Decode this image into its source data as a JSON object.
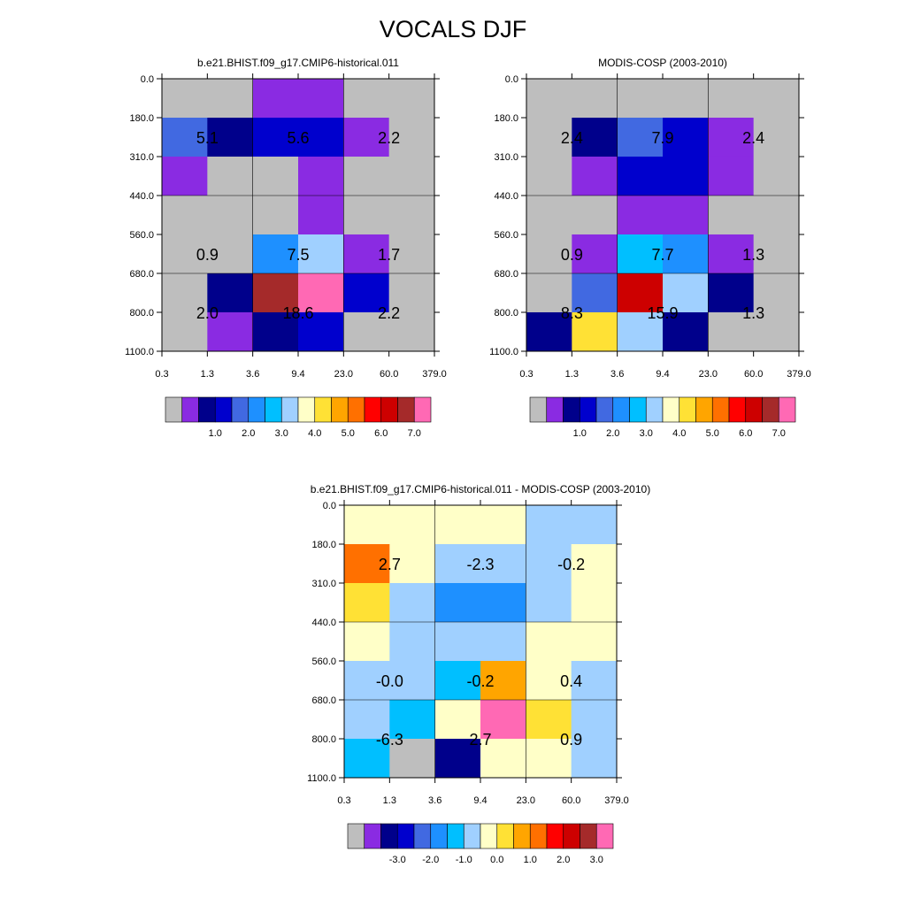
{
  "title": "VOCALS DJF",
  "y_tick_labels": [
    "0.0",
    "180.0",
    "310.0",
    "440.0",
    "560.0",
    "680.0",
    "800.0",
    "1100.0"
  ],
  "x_tick_labels": [
    "0.3",
    "1.3",
    "3.6",
    "9.4",
    "23.0",
    "60.0",
    "379.0"
  ],
  "chart_data": [
    {
      "type": "heatmap",
      "title": "b.e21.BHIST.f09_g17.CMIP6-historical.011",
      "cell_colors": [
        [
          "#bebebe",
          "#bebebe",
          "#8a2be2",
          "#8a2be2",
          "#bebebe",
          "#bebebe"
        ],
        [
          "#4169e1",
          "#00008b",
          "#0000cd",
          "#0000cd",
          "#8a2be2",
          "#bebebe"
        ],
        [
          "#8a2be2",
          "#bebebe",
          "#bebebe",
          "#8a2be2",
          "#bebebe",
          "#bebebe"
        ],
        [
          "#bebebe",
          "#bebebe",
          "#bebebe",
          "#8a2be2",
          "#bebebe",
          "#bebebe"
        ],
        [
          "#bebebe",
          "#bebebe",
          "#1e90ff",
          "#a0d0ff",
          "#8a2be2",
          "#bebebe"
        ],
        [
          "#bebebe",
          "#00008b",
          "#a52a2a",
          "#ff69b4",
          "#0000cd",
          "#bebebe"
        ],
        [
          "#bebebe",
          "#8a2be2",
          "#00008b",
          "#0000cd",
          "#bebebe",
          "#bebebe"
        ]
      ],
      "annotations": [
        [
          "5.1",
          "5.6",
          "2.2"
        ],
        [
          "0.9",
          "7.5",
          "1.7"
        ],
        [
          "2.0",
          "18.6",
          "2.2"
        ]
      ],
      "colorbar": {
        "colors": [
          "#bebebe",
          "#8a2be2",
          "#00008b",
          "#0000cd",
          "#4169e1",
          "#1e90ff",
          "#00bfff",
          "#a0d0ff",
          "#ffffc8",
          "#ffe135",
          "#ffa500",
          "#ff7000",
          "#ff0000",
          "#cd0000",
          "#a52a2a",
          "#ff69b4"
        ],
        "labels": [
          "1.0",
          "2.0",
          "3.0",
          "4.0",
          "5.0",
          "6.0",
          "7.0"
        ]
      }
    },
    {
      "type": "heatmap",
      "title": "MODIS-COSP (2003-2010)",
      "cell_colors": [
        [
          "#bebebe",
          "#bebebe",
          "#bebebe",
          "#bebebe",
          "#bebebe",
          "#bebebe"
        ],
        [
          "#bebebe",
          "#00008b",
          "#4169e1",
          "#0000cd",
          "#8a2be2",
          "#bebebe"
        ],
        [
          "#bebebe",
          "#8a2be2",
          "#0000cd",
          "#0000cd",
          "#8a2be2",
          "#bebebe"
        ],
        [
          "#bebebe",
          "#bebebe",
          "#8a2be2",
          "#8a2be2",
          "#bebebe",
          "#bebebe"
        ],
        [
          "#bebebe",
          "#8a2be2",
          "#00bfff",
          "#1e90ff",
          "#8a2be2",
          "#bebebe"
        ],
        [
          "#bebebe",
          "#4169e1",
          "#cd0000",
          "#a0d0ff",
          "#00008b",
          "#bebebe"
        ],
        [
          "#00008b",
          "#ffe135",
          "#a0d0ff",
          "#00008b",
          "#bebebe",
          "#bebebe"
        ]
      ],
      "annotations": [
        [
          "2.4",
          "7.9",
          "2.4"
        ],
        [
          "0.9",
          "7.7",
          "1.3"
        ],
        [
          "8.3",
          "15.9",
          "1.3"
        ]
      ],
      "colorbar": {
        "colors": [
          "#bebebe",
          "#8a2be2",
          "#00008b",
          "#0000cd",
          "#4169e1",
          "#1e90ff",
          "#00bfff",
          "#a0d0ff",
          "#ffffc8",
          "#ffe135",
          "#ffa500",
          "#ff7000",
          "#ff0000",
          "#cd0000",
          "#a52a2a",
          "#ff69b4"
        ],
        "labels": [
          "1.0",
          "2.0",
          "3.0",
          "4.0",
          "5.0",
          "6.0",
          "7.0"
        ]
      }
    },
    {
      "type": "heatmap",
      "title": "b.e21.BHIST.f09_g17.CMIP6-historical.011 - MODIS-COSP (2003-2010)",
      "cell_colors": [
        [
          "#ffffc8",
          "#ffffc8",
          "#ffffc8",
          "#ffffc8",
          "#a0d0ff",
          "#a0d0ff"
        ],
        [
          "#ff7000",
          "#ffffc8",
          "#a0d0ff",
          "#a0d0ff",
          "#a0d0ff",
          "#ffffc8"
        ],
        [
          "#ffe135",
          "#a0d0ff",
          "#1e90ff",
          "#1e90ff",
          "#a0d0ff",
          "#ffffc8"
        ],
        [
          "#ffffc8",
          "#a0d0ff",
          "#a0d0ff",
          "#a0d0ff",
          "#ffffc8",
          "#ffffc8"
        ],
        [
          "#a0d0ff",
          "#a0d0ff",
          "#00bfff",
          "#ffa500",
          "#ffffc8",
          "#a0d0ff"
        ],
        [
          "#a0d0ff",
          "#00bfff",
          "#ffffc8",
          "#ff69b4",
          "#ffe135",
          "#a0d0ff"
        ],
        [
          "#00bfff",
          "#bebebe",
          "#00008b",
          "#ffffc8",
          "#ffffc8",
          "#a0d0ff"
        ]
      ],
      "annotations": [
        [
          "2.7",
          "-2.3",
          "-0.2"
        ],
        [
          "-0.0",
          "-0.2",
          "0.4"
        ],
        [
          "-6.3",
          "2.7",
          "0.9"
        ]
      ],
      "colorbar": {
        "colors": [
          "#bebebe",
          "#8a2be2",
          "#00008b",
          "#0000cd",
          "#4169e1",
          "#1e90ff",
          "#00bfff",
          "#a0d0ff",
          "#ffffc8",
          "#ffe135",
          "#ffa500",
          "#ff7000",
          "#ff0000",
          "#cd0000",
          "#a52a2a",
          "#ff69b4"
        ],
        "labels": [
          "-3.0",
          "-2.0",
          "-1.0",
          "0.0",
          "1.0",
          "2.0",
          "3.0"
        ]
      }
    }
  ]
}
